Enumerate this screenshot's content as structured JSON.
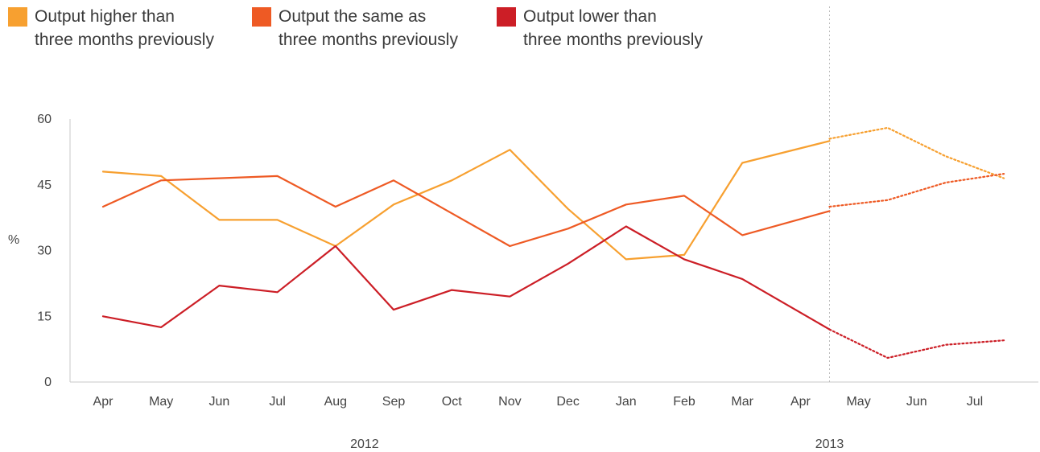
{
  "chart_data": {
    "type": "line",
    "ylabel": "%",
    "ylim": [
      0,
      60
    ],
    "yticks": [
      0,
      15,
      30,
      45,
      60
    ],
    "categories": [
      "Apr",
      "May",
      "Jun",
      "Jul",
      "Aug",
      "Sep",
      "Oct",
      "Nov",
      "Dec",
      "Jan",
      "Feb",
      "Mar",
      "Apr",
      "May",
      "Jun",
      "Jul"
    ],
    "year_labels": [
      {
        "label": "2012",
        "index": 4.5
      },
      {
        "label": "2013",
        "index": 12.5
      }
    ],
    "forecast_divider_index": 12.5,
    "legend_placement": "top-left",
    "grid": false,
    "series": [
      {
        "name": [
          "Output higher than",
          "three months previously"
        ],
        "color": "#F7A030",
        "actual": [
          [
            0,
            48
          ],
          [
            1,
            47
          ],
          [
            2,
            37
          ],
          [
            3,
            37
          ],
          [
            4,
            31
          ],
          [
            5,
            40.5
          ],
          [
            6,
            46
          ],
          [
            7,
            53
          ],
          [
            8,
            39.5
          ],
          [
            9,
            28
          ],
          [
            10,
            29
          ],
          [
            11,
            50
          ],
          [
            12.5,
            55
          ]
        ],
        "forecast": [
          [
            12.5,
            55.5
          ],
          [
            13.5,
            58
          ],
          [
            14.5,
            51.5
          ],
          [
            15.5,
            46.5
          ]
        ]
      },
      {
        "name": [
          "Output the same as",
          "three months previously"
        ],
        "color": "#EE5A24",
        "actual": [
          [
            0,
            40
          ],
          [
            1,
            46
          ],
          [
            2,
            46.5
          ],
          [
            3,
            47
          ],
          [
            4,
            40
          ],
          [
            5,
            46
          ],
          [
            6,
            38.5
          ],
          [
            7,
            31
          ],
          [
            8,
            35
          ],
          [
            9,
            40.5
          ],
          [
            10,
            42.5
          ],
          [
            11,
            33.5
          ],
          [
            12.5,
            39
          ]
        ],
        "forecast": [
          [
            12.5,
            40
          ],
          [
            13.5,
            41.5
          ],
          [
            14.5,
            45.5
          ],
          [
            15.5,
            47.5
          ]
        ]
      },
      {
        "name": [
          "Output lower than",
          "three months previously"
        ],
        "color": "#CC1E26",
        "actual": [
          [
            0,
            15
          ],
          [
            1,
            12.5
          ],
          [
            2,
            22
          ],
          [
            3,
            20.5
          ],
          [
            4,
            31
          ],
          [
            5,
            16.5
          ],
          [
            6,
            21
          ],
          [
            7,
            19.5
          ],
          [
            8,
            27
          ],
          [
            9,
            35.5
          ],
          [
            10,
            28
          ],
          [
            11,
            23.5
          ],
          [
            12.5,
            12
          ]
        ],
        "forecast": [
          [
            12.5,
            12
          ],
          [
            13.5,
            5.5
          ],
          [
            14.5,
            8.5
          ],
          [
            15.5,
            9.5
          ]
        ]
      }
    ]
  }
}
